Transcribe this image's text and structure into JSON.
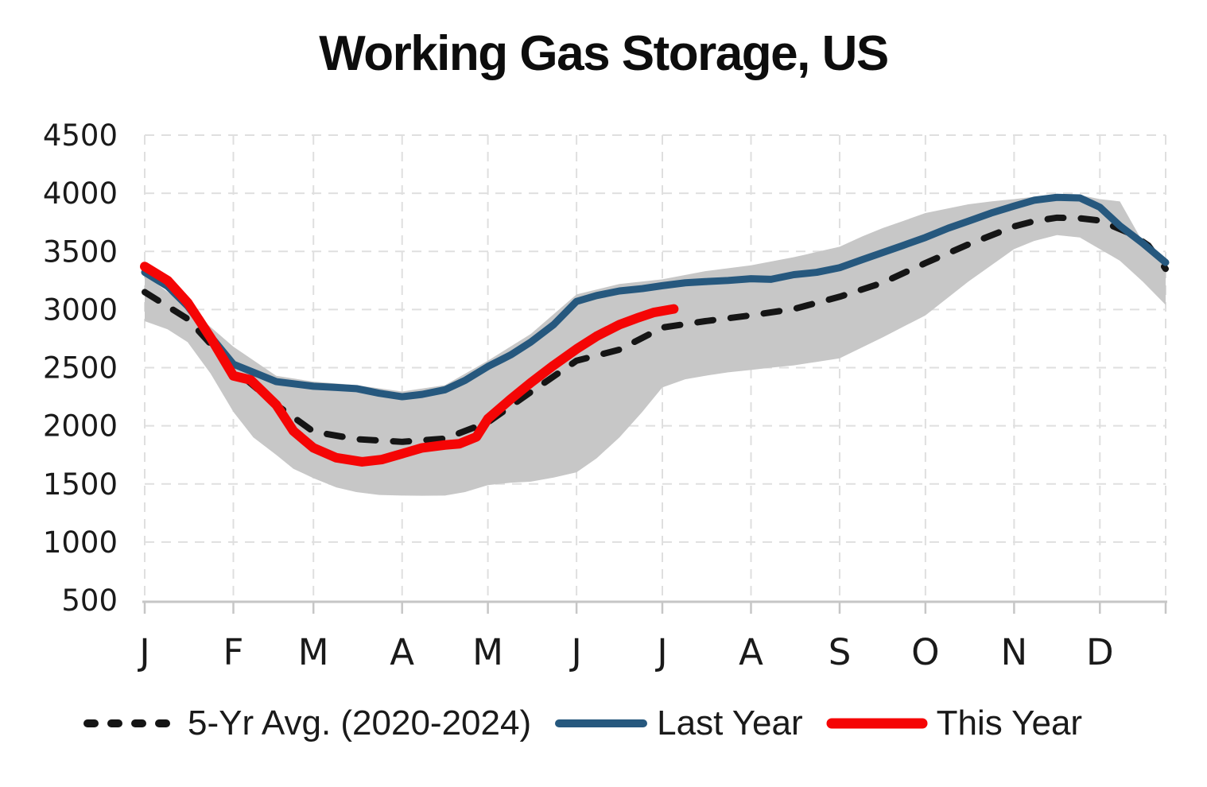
{
  "chart_data": {
    "type": "line",
    "title": "Working Gas Storage, US",
    "y_axis": {
      "min": 500,
      "max": 4500,
      "step": 500,
      "tick_labels": [
        "4500",
        "4000",
        "3500",
        "3000",
        "2500",
        "2000",
        "1500",
        "1000",
        "500"
      ],
      "grid": "dashed"
    },
    "x_axis": {
      "unit": "day-of-year",
      "range_days": [
        0,
        357
      ],
      "tick_days": [
        0,
        31,
        59,
        90,
        120,
        151,
        181,
        212,
        243,
        273,
        304,
        334,
        357
      ],
      "month_labels": [
        "J",
        "F",
        "M",
        "A",
        "M",
        "J",
        "J",
        "A",
        "S",
        "O",
        "N",
        "D"
      ],
      "grid": "dashed"
    },
    "colors": {
      "grid": "#DFDFDF",
      "axis": "#C6C6C6",
      "band_fill": "#C7C7C7",
      "avg": "#151515",
      "last_year": "#26587E",
      "this_year": "#F50505",
      "text": "#1A1A1A"
    },
    "band": {
      "top": {
        "days": [
          0,
          15,
          31,
          46,
          59,
          74,
          90,
          105,
          120,
          135,
          151,
          166,
          181,
          196,
          212,
          227,
          243,
          251,
          258,
          265,
          273,
          281,
          288,
          296,
          304,
          311,
          319,
          327,
          334,
          341,
          349,
          357
        ],
        "values": [
          3300,
          3020,
          2680,
          2430,
          2380,
          2350,
          2295,
          2350,
          2560,
          2790,
          3130,
          3220,
          3260,
          3330,
          3380,
          3450,
          3540,
          3630,
          3700,
          3760,
          3830,
          3870,
          3905,
          3930,
          3950,
          3970,
          3990,
          3985,
          3950,
          3930,
          3580,
          3440
        ]
      },
      "bottom": {
        "days": [
          0,
          8,
          15,
          23,
          31,
          38,
          46,
          52,
          59,
          67,
          74,
          82,
          90,
          97,
          105,
          112,
          120,
          128,
          135,
          143,
          151,
          158,
          166,
          174,
          181,
          189,
          196,
          204,
          212,
          219,
          227,
          235,
          243,
          258,
          273,
          288,
          304,
          311,
          319,
          327,
          334,
          341,
          345,
          349,
          353,
          357
        ],
        "values": [
          2900,
          2830,
          2720,
          2450,
          2120,
          1900,
          1750,
          1630,
          1550,
          1470,
          1430,
          1405,
          1400,
          1398,
          1400,
          1430,
          1490,
          1510,
          1520,
          1555,
          1600,
          1720,
          1900,
          2120,
          2330,
          2400,
          2430,
          2460,
          2480,
          2500,
          2520,
          2550,
          2580,
          2760,
          2950,
          3240,
          3520,
          3590,
          3640,
          3620,
          3520,
          3420,
          3330,
          3240,
          3140,
          3040
        ]
      }
    },
    "series": [
      {
        "id": "avg",
        "name": "5-Yr Avg. (2020-2024)",
        "style": "dashed",
        "color": "#151515",
        "days": [
          0,
          15,
          31,
          46,
          59,
          74,
          90,
          105,
          120,
          135,
          151,
          166,
          181,
          196,
          212,
          227,
          243,
          258,
          273,
          288,
          304,
          311,
          319,
          327,
          334,
          345,
          351,
          357
        ],
        "values": [
          3150,
          2920,
          2490,
          2180,
          1950,
          1885,
          1862,
          1890,
          2030,
          2290,
          2560,
          2655,
          2845,
          2900,
          2950,
          3005,
          3110,
          3230,
          3400,
          3560,
          3715,
          3760,
          3790,
          3785,
          3765,
          3650,
          3550,
          3350
        ]
      },
      {
        "id": "last_year",
        "name": "Last Year",
        "style": "solid",
        "color": "#26587E",
        "days": [
          0,
          8,
          15,
          23,
          31,
          38,
          46,
          59,
          67,
          74,
          82,
          90,
          97,
          105,
          112,
          120,
          128,
          135,
          143,
          151,
          158,
          166,
          174,
          181,
          189,
          196,
          204,
          212,
          219,
          227,
          235,
          243,
          251,
          258,
          265,
          273,
          281,
          288,
          296,
          304,
          311,
          319,
          327,
          334,
          341,
          349,
          357
        ],
        "values": [
          3320,
          3200,
          3030,
          2770,
          2530,
          2460,
          2380,
          2340,
          2330,
          2320,
          2280,
          2250,
          2270,
          2310,
          2390,
          2510,
          2610,
          2720,
          2870,
          3070,
          3120,
          3160,
          3180,
          3205,
          3230,
          3240,
          3250,
          3265,
          3260,
          3300,
          3320,
          3360,
          3430,
          3490,
          3550,
          3620,
          3700,
          3760,
          3830,
          3890,
          3940,
          3965,
          3960,
          3880,
          3720,
          3570,
          3405
        ]
      },
      {
        "id": "this_year",
        "name": "This Year",
        "style": "solid",
        "color": "#F50505",
        "days": [
          0,
          8,
          15,
          23,
          31,
          37,
          46,
          52,
          59,
          67,
          76,
          83,
          90,
          97,
          105,
          110,
          116,
          120,
          128,
          135,
          143,
          151,
          158,
          166,
          172,
          178,
          185
        ],
        "values": [
          3370,
          3250,
          3060,
          2760,
          2430,
          2395,
          2180,
          1955,
          1810,
          1725,
          1690,
          1710,
          1760,
          1810,
          1835,
          1845,
          1905,
          2060,
          2230,
          2370,
          2520,
          2660,
          2770,
          2870,
          2925,
          2975,
          3005
        ]
      }
    ],
    "legend_position": "bottom"
  }
}
